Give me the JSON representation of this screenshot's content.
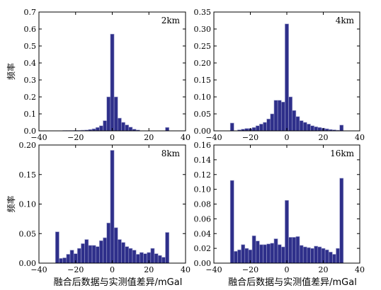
{
  "figure": {
    "bar_color": "#2e2f8a",
    "bar_edge": "#9ea0cc",
    "axis_color": "#000000"
  },
  "chart_data": [
    {
      "type": "bar",
      "panel": "top-left",
      "title": "2km",
      "ylabel": "频率",
      "xlabel": "",
      "xlim": [
        -40,
        40
      ],
      "ylim": [
        0,
        0.7
      ],
      "xticks": [
        -40,
        -20,
        0,
        20,
        40
      ],
      "xtick_labels": [
        "−40",
        "−20",
        "0",
        "20",
        "40"
      ],
      "yticks": [
        0,
        0.1,
        0.2,
        0.3,
        0.4,
        0.5,
        0.6,
        0.7
      ],
      "ytick_labels": [
        "0.0",
        "0.1",
        "0.2",
        "0.3",
        "0.4",
        "0.5",
        "0.6",
        "0.7"
      ],
      "bin_width": 2,
      "x": [
        -26,
        -24,
        -22,
        -20,
        -18,
        -16,
        -14,
        -12,
        -10,
        -8,
        -6,
        -4,
        -2,
        0,
        2,
        4,
        6,
        8,
        10,
        12,
        14,
        30
      ],
      "values": [
        0.002,
        0.002,
        0.002,
        0.003,
        0.003,
        0.004,
        0.005,
        0.008,
        0.012,
        0.02,
        0.03,
        0.06,
        0.2,
        0.57,
        0.2,
        0.075,
        0.05,
        0.035,
        0.022,
        0.01,
        0.005,
        0.02
      ]
    },
    {
      "type": "bar",
      "panel": "top-right",
      "title": "4km",
      "ylabel": "",
      "xlabel": "",
      "xlim": [
        -40,
        40
      ],
      "ylim": [
        0,
        0.35
      ],
      "xticks": [
        -40,
        -20,
        0,
        20,
        40
      ],
      "xtick_labels": [
        "−40",
        "−20",
        "0",
        "20",
        "40"
      ],
      "yticks": [
        0,
        0.05,
        0.1,
        0.15,
        0.2,
        0.25,
        0.3,
        0.35
      ],
      "ytick_labels": [
        "0.00",
        "0.05",
        "0.10",
        "0.15",
        "0.20",
        "0.25",
        "0.30",
        "0.35"
      ],
      "bin_width": 2,
      "x": [
        -30,
        -26,
        -24,
        -22,
        -20,
        -18,
        -16,
        -14,
        -12,
        -10,
        -8,
        -6,
        -4,
        -2,
        0,
        2,
        4,
        6,
        8,
        10,
        12,
        14,
        16,
        18,
        20,
        22,
        24,
        26,
        28,
        30
      ],
      "values": [
        0.023,
        0.003,
        0.005,
        0.007,
        0.007,
        0.01,
        0.015,
        0.02,
        0.025,
        0.035,
        0.05,
        0.09,
        0.09,
        0.085,
        0.315,
        0.1,
        0.06,
        0.042,
        0.03,
        0.025,
        0.02,
        0.015,
        0.012,
        0.01,
        0.008,
        0.006,
        0.004,
        0.003,
        0.002,
        0.017
      ]
    },
    {
      "type": "bar",
      "panel": "bottom-left",
      "title": "8km",
      "ylabel": "频率",
      "xlabel": "融合后数据与实测值差异/mGal",
      "xlim": [
        -40,
        40
      ],
      "ylim": [
        0,
        0.2
      ],
      "xticks": [
        -40,
        -20,
        0,
        20,
        40
      ],
      "xtick_labels": [
        "−40",
        "−20",
        "0",
        "20",
        "40"
      ],
      "yticks": [
        0,
        0.05,
        0.1,
        0.15,
        0.2
      ],
      "ytick_labels": [
        "0.00",
        "0.05",
        "0.10",
        "0.15",
        "0.20"
      ],
      "bin_width": 2,
      "x": [
        -30,
        -28,
        -26,
        -24,
        -22,
        -20,
        -18,
        -16,
        -14,
        -12,
        -10,
        -8,
        -6,
        -4,
        -2,
        0,
        2,
        4,
        6,
        8,
        10,
        12,
        14,
        16,
        18,
        20,
        22,
        24,
        26,
        28,
        30
      ],
      "values": [
        0.053,
        0.008,
        0.009,
        0.015,
        0.022,
        0.016,
        0.025,
        0.033,
        0.04,
        0.03,
        0.03,
        0.028,
        0.038,
        0.043,
        0.068,
        0.191,
        0.06,
        0.04,
        0.035,
        0.028,
        0.025,
        0.022,
        0.015,
        0.018,
        0.016,
        0.018,
        0.025,
        0.016,
        0.013,
        0.01,
        0.052
      ]
    },
    {
      "type": "bar",
      "panel": "bottom-right",
      "title": "16km",
      "ylabel": "",
      "xlabel": "融合后数据与实测值差异/mGal",
      "xlim": [
        -40,
        40
      ],
      "ylim": [
        0,
        0.16
      ],
      "xticks": [
        -40,
        -20,
        0,
        20,
        40
      ],
      "xtick_labels": [
        "−40",
        "−20",
        "0",
        "20",
        "40"
      ],
      "yticks": [
        0,
        0.02,
        0.04,
        0.06,
        0.08,
        0.1,
        0.12,
        0.14,
        0.16
      ],
      "ytick_labels": [
        "0.00",
        "0.02",
        "0.04",
        "0.06",
        "0.08",
        "0.10",
        "0.12",
        "0.14",
        "0.16"
      ],
      "bin_width": 2,
      "x": [
        -30,
        -28,
        -26,
        -24,
        -22,
        -20,
        -18,
        -16,
        -14,
        -12,
        -10,
        -8,
        -6,
        -4,
        -2,
        0,
        2,
        4,
        6,
        8,
        10,
        12,
        14,
        16,
        18,
        20,
        22,
        24,
        26,
        28,
        30
      ],
      "values": [
        0.112,
        0.016,
        0.018,
        0.025,
        0.02,
        0.018,
        0.037,
        0.03,
        0.025,
        0.025,
        0.026,
        0.027,
        0.033,
        0.025,
        0.022,
        0.085,
        0.035,
        0.035,
        0.036,
        0.024,
        0.022,
        0.021,
        0.02,
        0.023,
        0.022,
        0.02,
        0.018,
        0.015,
        0.012,
        0.02,
        0.115
      ]
    }
  ]
}
